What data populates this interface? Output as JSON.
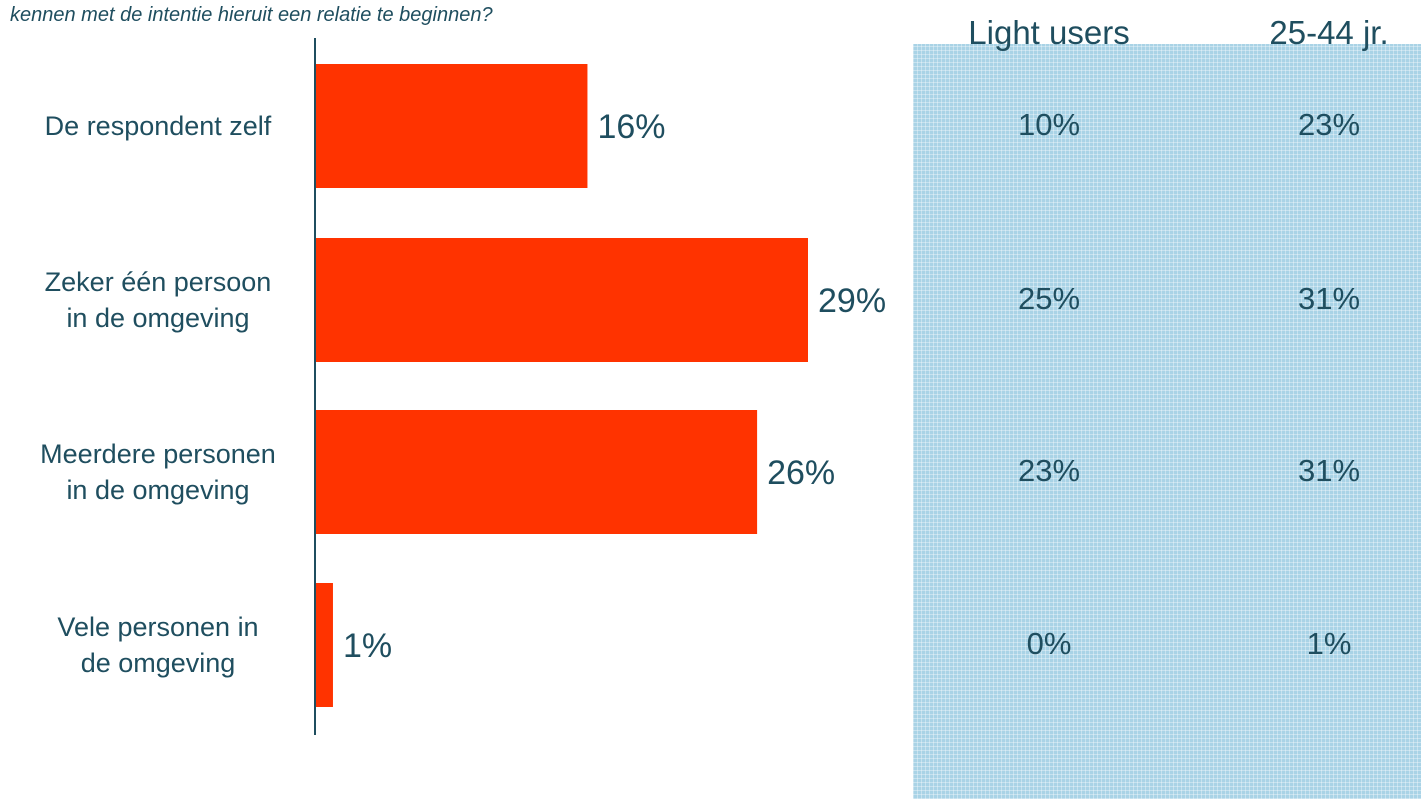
{
  "question": "kennen met de intentie hieruit een relatie te beginnen?",
  "colors": {
    "bar": "#ff3300",
    "axis": "#1f4e5f",
    "text": "#1f4e5f",
    "panel": "#a9d3e6"
  },
  "chart_data": {
    "type": "bar",
    "orientation": "horizontal",
    "categories": [
      [
        "De respondent zelf"
      ],
      [
        "Zeker één persoon",
        "in de omgeving"
      ],
      [
        "Meerdere personen",
        "in de omgeving"
      ],
      [
        "Vele personen in",
        "de omgeving"
      ]
    ],
    "values": [
      16,
      29,
      26,
      1
    ],
    "value_labels": [
      "16%",
      "29%",
      "26%",
      "1%"
    ],
    "title": "kennen met de intentie hieruit een relatie te beginnen?",
    "xlim": [
      0,
      35
    ]
  },
  "comparison": {
    "columns": [
      {
        "header": "Light users",
        "values": [
          "10%",
          "25%",
          "23%",
          "0%"
        ]
      },
      {
        "header": "25-44 jr.",
        "values": [
          "23%",
          "31%",
          "31%",
          "1%"
        ]
      }
    ]
  }
}
